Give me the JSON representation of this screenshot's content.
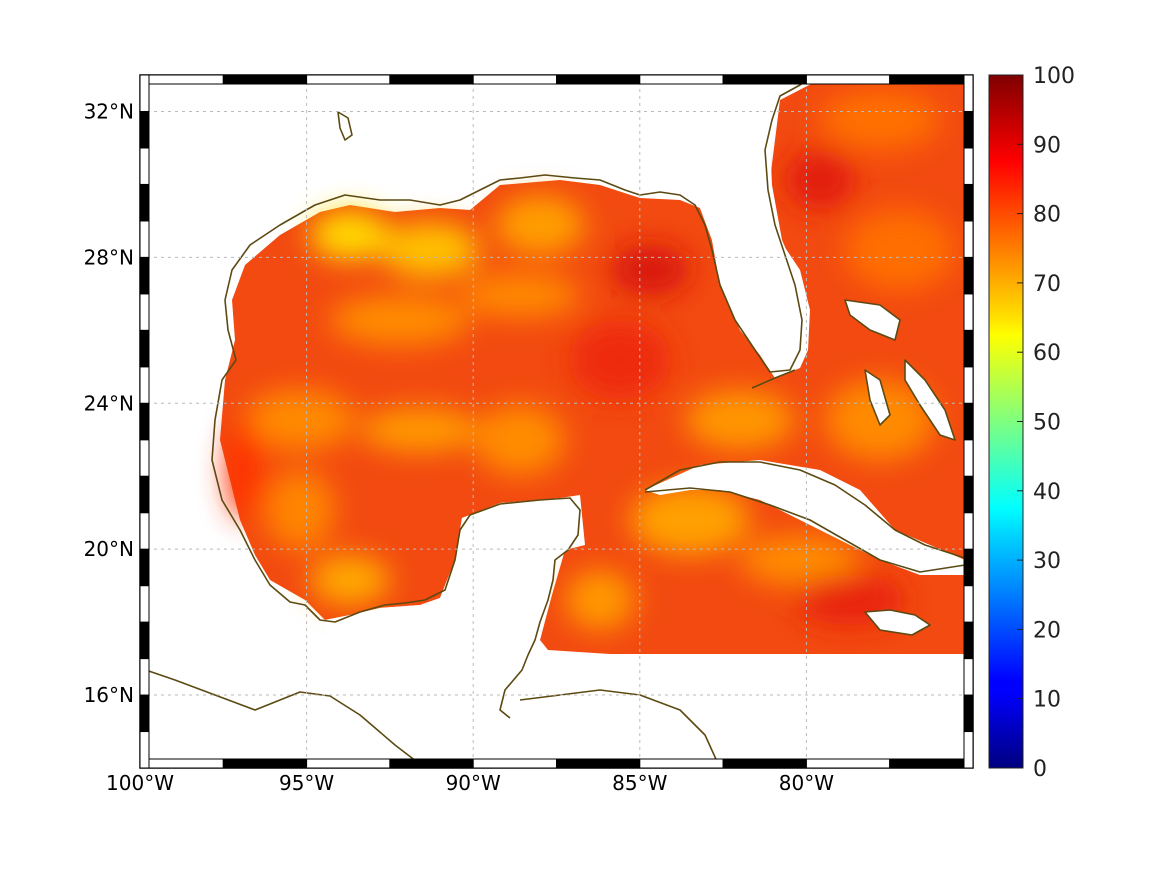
{
  "map": {
    "type": "heatmap",
    "lon_range": [
      -100,
      -75
    ],
    "lat_range": [
      14,
      33
    ],
    "lon_ticks": [
      {
        "value": -100,
        "label": "100°W"
      },
      {
        "value": -95,
        "label": "95°W"
      },
      {
        "value": -90,
        "label": "90°W"
      },
      {
        "value": -85,
        "label": "85°W"
      },
      {
        "value": -80,
        "label": "80°W"
      }
    ],
    "lat_ticks": [
      {
        "value": 16,
        "label": "16°N"
      },
      {
        "value": 20,
        "label": "20°N"
      },
      {
        "value": 24,
        "label": "24°N"
      },
      {
        "value": 28,
        "label": "28°N"
      },
      {
        "value": 32,
        "label": "32°N"
      }
    ],
    "grid": true,
    "field_range_dominant": [
      70,
      95
    ],
    "coastline_color": "#5c4a12",
    "colors": {
      "high": "#e8220a",
      "mid": "#ff6a00",
      "low": "#ffb000",
      "low_yellow": "#ffd600"
    }
  },
  "colorbar": {
    "range": [
      0,
      100
    ],
    "ticks": [
      "0",
      "10",
      "20",
      "30",
      "40",
      "50",
      "60",
      "70",
      "80",
      "90",
      "100"
    ],
    "colormap": "jet"
  }
}
